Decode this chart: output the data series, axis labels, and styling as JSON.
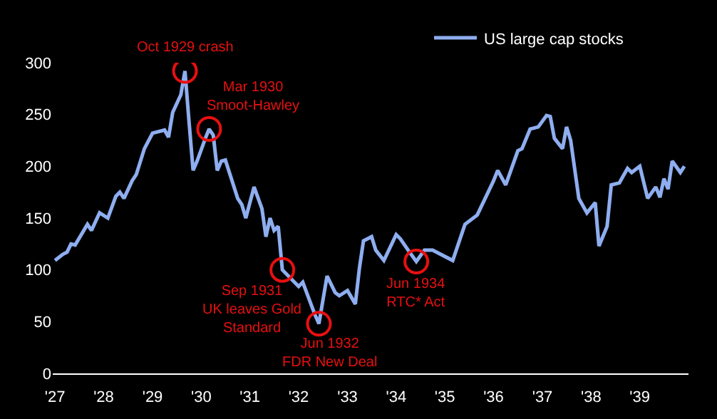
{
  "chart_data": {
    "type": "line",
    "x": [
      "1927-01",
      "1927-03",
      "1927-04",
      "1927-05",
      "1927-06",
      "1927-09",
      "1927-10",
      "1927-12",
      "1928-02",
      "1928-04",
      "1928-05",
      "1928-06",
      "1928-08",
      "1928-09",
      "1928-11",
      "1929-01",
      "1929-04",
      "1929-05",
      "1929-06",
      "1929-08",
      "1929-09",
      "1929-10",
      "1929-11",
      "1929-12",
      "1930-02",
      "1930-03",
      "1930-04",
      "1930-05",
      "1930-06",
      "1930-07",
      "1930-10",
      "1930-11",
      "1930-12",
      "1931-02",
      "1931-04",
      "1931-05",
      "1931-06",
      "1931-07",
      "1931-08",
      "1931-09",
      "1932-01",
      "1932-02",
      "1932-05",
      "1932-06",
      "1932-08",
      "1932-10",
      "1932-11",
      "1933-01",
      "1933-03",
      "1933-04",
      "1933-05",
      "1933-07",
      "1933-08",
      "1933-10",
      "1934-01",
      "1934-02",
      "1934-04",
      "1934-06",
      "1934-08",
      "1934-10",
      "1935-03",
      "1935-06",
      "1935-09",
      "1936-01",
      "1936-02",
      "1936-04",
      "1936-07",
      "1936-08",
      "1936-10",
      "1936-12",
      "1937-02",
      "1937-03",
      "1937-04",
      "1937-06",
      "1937-07",
      "1937-08",
      "1937-10",
      "1937-12",
      "1938-02",
      "1938-03",
      "1938-05",
      "1938-06",
      "1938-08",
      "1938-10",
      "1938-11",
      "1939-01",
      "1939-03",
      "1939-05",
      "1939-06",
      "1939-07",
      "1939-08",
      "1939-09",
      "1939-11",
      "1939-12"
    ],
    "series": [
      {
        "name": "US large cap stocks",
        "color": "#8eaef0",
        "values": [
          109,
          115,
          117,
          125,
          124,
          144,
          138,
          155,
          150,
          171,
          175,
          169,
          186,
          192,
          217,
          232,
          235,
          228,
          252,
          269,
          292,
          244,
          196,
          205,
          227,
          236,
          230,
          196,
          205,
          206,
          169,
          163,
          150,
          180,
          159,
          132,
          150,
          138,
          142,
          100,
          84,
          88,
          57,
          48,
          94,
          78,
          75,
          80,
          67,
          102,
          128,
          132,
          119,
          109,
          134,
          130,
          119,
          108,
          119,
          119,
          109,
          144,
          153,
          186,
          196,
          182,
          215,
          217,
          236,
          238,
          249,
          248,
          227,
          217,
          238,
          225,
          169,
          155,
          165,
          123,
          142,
          182,
          184,
          198,
          194,
          200,
          169,
          180,
          170,
          188,
          178,
          205,
          194,
          200
        ]
      }
    ],
    "xlim": [
      "1926-12-15",
      "1940-01-01"
    ],
    "xticks": [
      {
        "value": "1927-01",
        "label": "'27"
      },
      {
        "value": "1928-01",
        "label": "'28"
      },
      {
        "value": "1929-01",
        "label": "'29"
      },
      {
        "value": "1930-01",
        "label": "'30"
      },
      {
        "value": "1931-01",
        "label": "'31"
      },
      {
        "value": "1932-01",
        "label": "'32"
      },
      {
        "value": "1933-01",
        "label": "'33"
      },
      {
        "value": "1934-01",
        "label": "'34"
      },
      {
        "value": "1935-01",
        "label": "'35"
      },
      {
        "value": "1936-01",
        "label": "'36"
      },
      {
        "value": "1937-01",
        "label": "'37"
      },
      {
        "value": "1938-01",
        "label": "'38"
      },
      {
        "value": "1939-01",
        "label": "'39"
      }
    ],
    "ylim": [
      0,
      300
    ],
    "yticks": [
      0,
      50,
      100,
      150,
      200,
      250,
      300
    ],
    "legend": "top",
    "grid": false,
    "marker": "none",
    "line_style": "solid",
    "annotations": [
      {
        "text": "Oct 1929 crash",
        "x": "1929-09",
        "y": 292
      },
      {
        "text": "Mar 1930\nSmoot-Hawley",
        "x": "1930-03",
        "y": 236
      },
      {
        "text": "Sep 1931\nUK leaves Gold\nStandard",
        "x": "1931-09",
        "y": 100
      },
      {
        "text": "Jun 1932\nFDR New Deal",
        "x": "1932-06",
        "y": 48
      },
      {
        "text": "Jun 1934\nRTC* Act",
        "x": "1934-06",
        "y": 108
      }
    ]
  }
}
